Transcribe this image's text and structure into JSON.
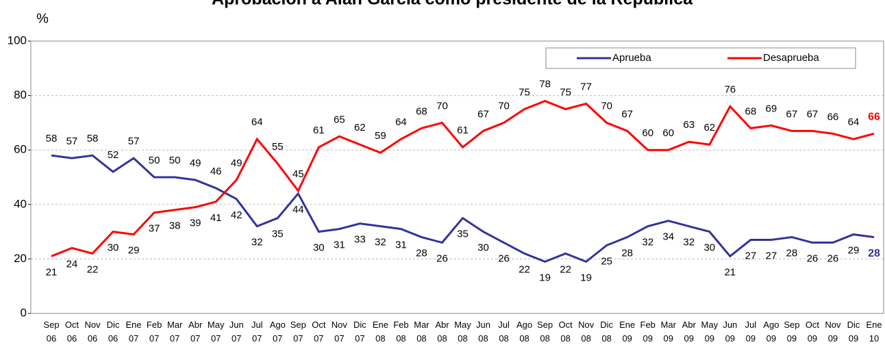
{
  "chart_data": {
    "type": "line",
    "title": "Aprobación a Alan García como presidente de la República",
    "y_label": "%",
    "categories": [
      "Sep 06",
      "Oct 06",
      "Nov 06",
      "Dic 06",
      "Ene 07",
      "Feb 07",
      "Mar 07",
      "Abr 07",
      "May 07",
      "Jun 07",
      "Jul 07",
      "Ago 07",
      "Sep 07",
      "Oct 07",
      "Nov 07",
      "Dic 07",
      "Ene 08",
      "Feb 08",
      "Mar 08",
      "Abr 08",
      "May 08",
      "Jun 08",
      "Jul 08",
      "Ago 08",
      "Sep 08",
      "Oct 08",
      "Nov 08",
      "Dic 08",
      "Ene 09",
      "Feb 09",
      "Mar 09",
      "Abr 09",
      "May 09",
      "Jun 09",
      "Jul 09",
      "Ago 09",
      "Sep 09",
      "Oct 09",
      "Nov 09",
      "Dic 09",
      "Ene 10"
    ],
    "series": [
      {
        "name": "Aprueba",
        "color": "#333399",
        "values": [
          58,
          57,
          58,
          52,
          57,
          50,
          50,
          49,
          46,
          42,
          32,
          35,
          44,
          30,
          31,
          33,
          32,
          31,
          28,
          26,
          35,
          30,
          26,
          22,
          19,
          22,
          19,
          25,
          28,
          32,
          34,
          32,
          30,
          21,
          27,
          27,
          28,
          26,
          26,
          29,
          28
        ]
      },
      {
        "name": "Desaprueba",
        "color": "#ff0000",
        "values": [
          21,
          24,
          22,
          30,
          29,
          37,
          38,
          39,
          41,
          49,
          64,
          55,
          45,
          61,
          65,
          62,
          59,
          64,
          68,
          70,
          61,
          67,
          70,
          75,
          78,
          75,
          77,
          70,
          67,
          60,
          60,
          63,
          62,
          76,
          68,
          69,
          67,
          67,
          66,
          64,
          66
        ]
      }
    ],
    "ylim": [
      0,
      100
    ],
    "yticks": [
      0,
      20,
      40,
      60,
      80,
      100
    ],
    "grid": true,
    "legend": "top-right"
  }
}
